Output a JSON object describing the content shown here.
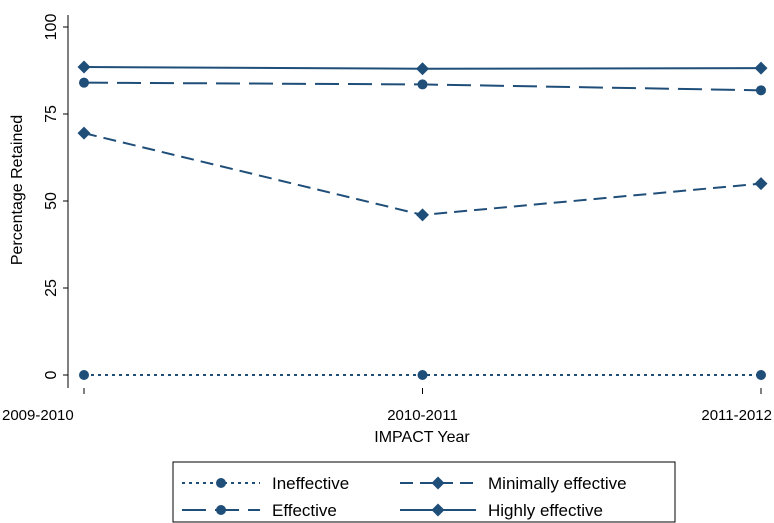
{
  "chart_data": {
    "type": "line",
    "title": "",
    "xlabel": "IMPACT Year",
    "ylabel": "Percentage Retained",
    "categories": [
      "2009-2010",
      "2010-2011",
      "2011-2012"
    ],
    "yticks": [
      "0",
      "25",
      "50",
      "75",
      "100"
    ],
    "ylim": [
      0,
      100
    ],
    "grid": false,
    "legend_position": "bottom",
    "series_color": "#1f4e79",
    "series": [
      {
        "name": "Ineffective",
        "values": [
          0,
          0,
          0
        ],
        "line_style": "dotted",
        "marker": "circle"
      },
      {
        "name": "Minimally effective",
        "values": [
          69.5,
          46,
          55
        ],
        "line_style": "short-dash",
        "marker": "diamond"
      },
      {
        "name": "Effective",
        "values": [
          84,
          83.5,
          81.8
        ],
        "line_style": "long-dash",
        "marker": "circle"
      },
      {
        "name": "Highly effective",
        "values": [
          88.5,
          88,
          88.2
        ],
        "line_style": "solid",
        "marker": "diamond"
      }
    ]
  }
}
